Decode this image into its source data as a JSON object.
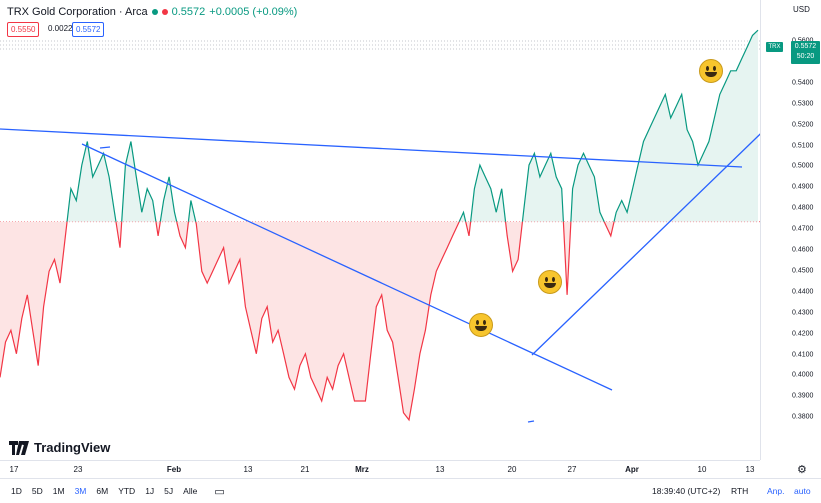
{
  "header": {
    "title": "TRX Gold Corporation · Arca",
    "last": "0.5572",
    "change": "+0.0005 (+0.09%)",
    "sell": "0.5550",
    "spread": "0.0022",
    "buy": "0.5572"
  },
  "yaxis": {
    "currency": "USD",
    "ticks": [
      "0.5600",
      "0.5500",
      "0.5400",
      "0.5300",
      "0.5200",
      "0.5100",
      "0.5000",
      "0.4900",
      "0.4800",
      "0.4700",
      "0.4600",
      "0.4500",
      "0.4400",
      "0.4300",
      "0.4200",
      "0.4100",
      "0.4000",
      "0.3900",
      "0.3800"
    ],
    "symbol_tag": "TRX",
    "price_tag": "0.5572",
    "countdown": "50:20"
  },
  "xaxis": {
    "ticks": [
      "17",
      "23",
      "Feb",
      "13",
      "21",
      "Mrz",
      "13",
      "20",
      "27",
      "Apr",
      "10",
      "13"
    ],
    "strong": [
      "Feb",
      "Mrz",
      "Apr"
    ]
  },
  "bottom": {
    "ranges": [
      "1D",
      "5D",
      "1M",
      "3M",
      "6M",
      "YTD",
      "1J",
      "5J",
      "Alle"
    ],
    "active_range": "3M",
    "time": "18:39:40 (UTC+2)",
    "session": "RTH",
    "adjust": "Anp.",
    "auto": "auto"
  },
  "logo_text": "TradingView",
  "colors": {
    "up": "#089981",
    "down": "#f23645",
    "trend": "#2962ff",
    "up_fill": "#e6f4f1",
    "down_fill": "#fde4e4"
  },
  "chart_data": {
    "type": "area",
    "baseline": 0.476,
    "ylim": [
      0.375,
      0.57
    ],
    "trendlines": 3,
    "values": [
      0.41,
      0.425,
      0.43,
      0.42,
      0.435,
      0.445,
      0.43,
      0.415,
      0.44,
      0.455,
      0.46,
      0.45,
      0.47,
      0.49,
      0.485,
      0.5,
      0.51,
      0.495,
      0.5,
      0.505,
      0.495,
      0.48,
      0.465,
      0.5,
      0.51,
      0.495,
      0.48,
      0.49,
      0.485,
      0.47,
      0.485,
      0.495,
      0.48,
      0.47,
      0.465,
      0.485,
      0.475,
      0.455,
      0.45,
      0.455,
      0.46,
      0.465,
      0.45,
      0.455,
      0.46,
      0.44,
      0.43,
      0.42,
      0.435,
      0.44,
      0.425,
      0.43,
      0.42,
      0.41,
      0.405,
      0.415,
      0.42,
      0.41,
      0.405,
      0.4,
      0.41,
      0.405,
      0.415,
      0.42,
      0.41,
      0.4,
      0.4,
      0.4,
      0.42,
      0.44,
      0.445,
      0.43,
      0.425,
      0.41,
      0.395,
      0.392,
      0.405,
      0.42,
      0.43,
      0.445,
      0.455,
      0.46,
      0.465,
      0.47,
      0.475,
      0.48,
      0.47,
      0.49,
      0.5,
      0.495,
      0.49,
      0.48,
      0.49,
      0.47,
      0.455,
      0.46,
      0.48,
      0.5,
      0.505,
      0.495,
      0.5,
      0.505,
      0.495,
      0.49,
      0.445,
      0.49,
      0.5,
      0.505,
      0.5,
      0.495,
      0.48,
      0.475,
      0.47,
      0.48,
      0.485,
      0.48,
      0.49,
      0.5,
      0.51,
      0.515,
      0.52,
      0.525,
      0.53,
      0.52,
      0.525,
      0.53,
      0.515,
      0.51,
      0.5,
      0.505,
      0.51,
      0.52,
      0.53,
      0.535,
      0.54,
      0.54,
      0.545,
      0.55,
      0.555,
      0.5572
    ]
  }
}
